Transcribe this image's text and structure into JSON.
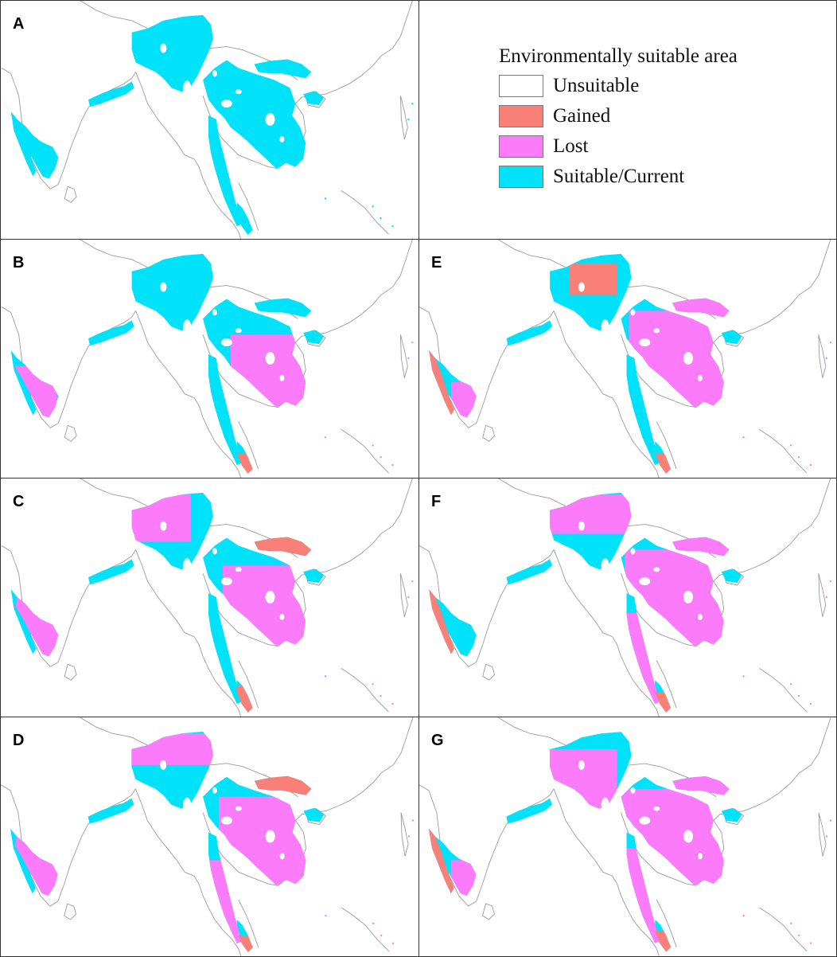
{
  "colors": {
    "unsuitable": "#ffffff",
    "gained": "#f88079",
    "lost": "#fb7bfb",
    "suitable": "#00e1fa",
    "coast": "#9a9a9a",
    "border": "#333333"
  },
  "legend": {
    "title": "Environmentally suitable area",
    "items": [
      {
        "label": "Unsuitable",
        "color": "#ffffff"
      },
      {
        "label": "Gained",
        "color": "#f88079"
      },
      {
        "label": "Lost",
        "color": "#fb7bfb"
      },
      {
        "label": "Suitable/Current",
        "color": "#00e1fa"
      }
    ]
  },
  "panels": [
    {
      "label": "A",
      "scenario": "current"
    },
    {
      "label": "B",
      "scenario": "future"
    },
    {
      "label": "C",
      "scenario": "future"
    },
    {
      "label": "D",
      "scenario": "future"
    },
    {
      "label": "E",
      "scenario": "future"
    },
    {
      "label": "F",
      "scenario": "future"
    },
    {
      "label": "G",
      "scenario": "future"
    }
  ]
}
